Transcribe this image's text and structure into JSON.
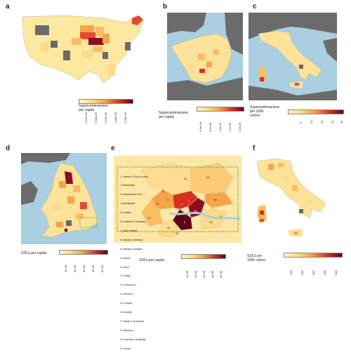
{
  "panels": {
    "a": {
      "letter": "a",
      "legend_title": "Supercentenarians\nper capita",
      "ticks": [
        "2.50e-06",
        "5.00e-06",
        "7.50e-06",
        "1.00e-05",
        "1.25e-05"
      ]
    },
    "b": {
      "letter": "b",
      "legend_title": "Supercentenarians\nper capita",
      "ticks": [
        "0.0e+00",
        "5.0e-06",
        "1.0e-05",
        "1.5e-05",
        "2.0e-05"
      ]
    },
    "c": {
      "letter": "c",
      "legend_title": "Supercentenarians\nper 100k\ncohort",
      "ticks": [
        "5",
        "10",
        "15",
        "20",
        "25"
      ]
    },
    "d": {
      "letter": "d",
      "legend_title": "SSCs per capita",
      "ticks": [
        "1e-05",
        "2e-05",
        "3e-05",
        "4e-05",
        "5e-05"
      ]
    },
    "e": {
      "letter": "e",
      "legend_title": "SSCs per capita",
      "ticks": [
        "1e-05",
        "2e-05",
        "3e-05",
        "4e-05",
        "5e-05"
      ],
      "boroughs": [
        "1. Camden & City of London",
        "2. Westminster",
        "3. Hammersmith & Fu...",
        "4. Wandsworth",
        "5. Lambeth",
        "6. Lewisham & Southwark",
        "7. Tower Hamlets",
        "8. Hackney & Newham",
        "9. Haringey & Islington",
        "10. Barnet",
        "11. Brent",
        "12. Ealing",
        "13. Hounslow & ...",
        "14. Merton & ...",
        "15. Croydon",
        "16. Bromley",
        "17. Bexley & Greenwich",
        "18. Barking & ...",
        "19. Havering & Redbridge",
        "20. Enfield"
      ],
      "map_numbers": [
        "10",
        "20",
        "11",
        "12",
        "1",
        "2",
        "3",
        "4",
        "5",
        "6",
        "7",
        "8",
        "9",
        "13",
        "14",
        "15",
        "16",
        "17",
        "18",
        "19"
      ]
    },
    "f": {
      "letter": "f",
      "legend_title": "SSCs per\n100k cohort",
      "ticks": [
        "100",
        "200",
        "300",
        "400",
        "500"
      ]
    }
  },
  "colors": {
    "ocean": "#a9cfe0",
    "land_grey": "#6b6b6b",
    "low": "#fff3b5",
    "mid": "#f7a349",
    "high": "#d7301f",
    "max": "#5c0518",
    "legend_dashed_box": "#2db52d"
  }
}
